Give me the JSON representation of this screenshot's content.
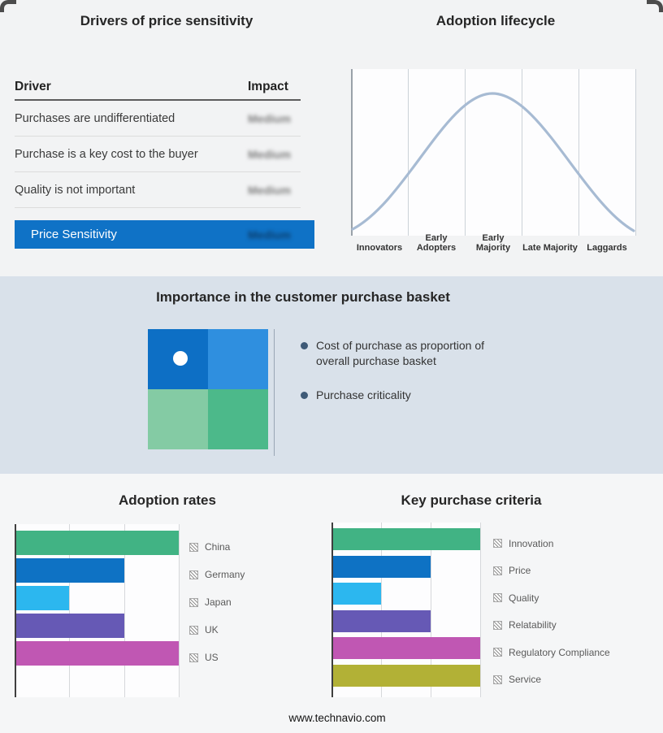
{
  "page": {
    "footer": "www.technavio.com"
  },
  "drivers_panel": {
    "title": "Drivers of price sensitivity",
    "columns": {
      "driver": "Driver",
      "impact": "Impact"
    },
    "rows": [
      {
        "driver": "Purchases are undifferentiated",
        "impact": "Medium"
      },
      {
        "driver": "Purchase is a key cost to the buyer",
        "impact": "Medium"
      },
      {
        "driver": "Quality is not important",
        "impact": "Medium"
      }
    ],
    "summary": {
      "label": "Price Sensitivity",
      "impact": "Medium"
    },
    "impact_values_obscured": true,
    "accent_color": "#0f72c6"
  },
  "basket_panel": {
    "title": "Importance in the customer purchase basket",
    "bullets": [
      "Cost of purchase as proportion of overall purchase basket",
      "Purchase criticality"
    ],
    "quadrant_colors": [
      "#0d6fc5",
      "#2f8fdf",
      "#84cba4",
      "#4cb98a"
    ],
    "band_bg": "#d9e1ea"
  },
  "chart_data": [
    {
      "type": "line",
      "title": "Adoption lifecycle",
      "x_categories": [
        "Innovators",
        "Early Adopters",
        "Early Majority",
        "Late Majority",
        "Laggards"
      ],
      "curve_shape": "bell",
      "peak_stage": "Early Majority",
      "relative_heights": [
        0.35,
        0.8,
        1.0,
        0.75,
        0.3
      ],
      "line_color": "#a7bbd3",
      "grid": "vertical stage dividers"
    },
    {
      "type": "bar",
      "title": "Adoption rates",
      "orientation": "horizontal",
      "categories": [
        "China",
        "Germany",
        "Japan",
        "UK",
        "US"
      ],
      "values": [
        3,
        2,
        1,
        2,
        3
      ],
      "colors": [
        "#41b384",
        "#0e72c4",
        "#2cb7ef",
        "#6659b5",
        "#c057b3"
      ],
      "xlim": [
        0,
        3
      ],
      "grid": true,
      "legend_position": "right"
    },
    {
      "type": "bar",
      "title": "Key purchase criteria",
      "orientation": "horizontal",
      "categories": [
        "Innovation",
        "Price",
        "Quality",
        "Relatability",
        "Regulatory Compliance",
        "Service"
      ],
      "values": [
        3,
        2,
        1,
        2,
        3,
        3
      ],
      "colors": [
        "#41b384",
        "#0e72c4",
        "#2cb7ef",
        "#6659b5",
        "#c057b3",
        "#b2b136"
      ],
      "xlim": [
        0,
        3
      ],
      "grid": true,
      "legend_position": "right"
    }
  ]
}
